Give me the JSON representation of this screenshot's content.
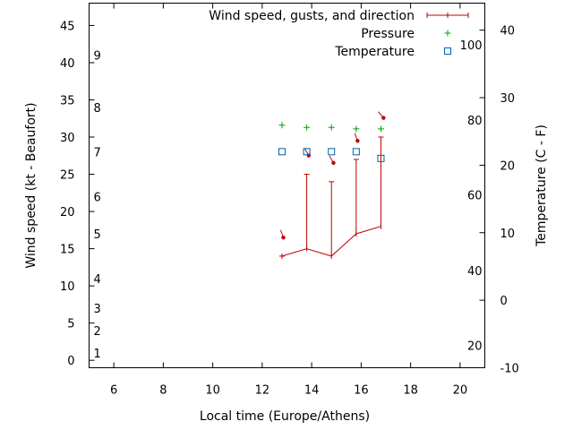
{
  "chart_data": {
    "type": "scatter",
    "xlabel": "Local time (Europe/Athens)",
    "ylabel": "Wind speed (kt - Beaufort)",
    "y2label": "Temperature (C - F)",
    "xlim": [
      5,
      21
    ],
    "ylim": [
      -1,
      48
    ],
    "y2lim": [
      -10,
      44
    ],
    "x_ticks": [
      6,
      8,
      10,
      12,
      14,
      16,
      18,
      20
    ],
    "y_ticks": [
      0,
      5,
      10,
      15,
      20,
      25,
      30,
      35,
      40,
      45
    ],
    "y2_ticks": [
      -10,
      0,
      10,
      20,
      30,
      40
    ],
    "beaufort_labels": [
      {
        "label": "1",
        "kt": 1
      },
      {
        "label": "2",
        "kt": 4
      },
      {
        "label": "3",
        "kt": 7
      },
      {
        "label": "4",
        "kt": 11
      },
      {
        "label": "5",
        "kt": 17
      },
      {
        "label": "6",
        "kt": 22
      },
      {
        "label": "7",
        "kt": 28
      },
      {
        "label": "8",
        "kt": 34
      },
      {
        "label": "9",
        "kt": 41
      }
    ],
    "fahrenheit_labels": [
      {
        "label": "20",
        "celsius": -6.7
      },
      {
        "label": "40",
        "celsius": 4.4
      },
      {
        "label": "60",
        "celsius": 15.6
      },
      {
        "label": "80",
        "celsius": 26.7
      },
      {
        "label": "100",
        "celsius": 37.8
      }
    ],
    "legend_position": "top-right",
    "series": [
      {
        "name": "Wind speed, gusts, and direction",
        "color": "#c00000",
        "x": [
          12.8,
          13.8,
          14.8,
          15.8,
          16.8
        ],
        "values": [
          14,
          15,
          14,
          17,
          18
        ],
        "gusts": [
          14,
          25,
          24,
          27,
          30
        ],
        "direction_deg": [
          340,
          330,
          330,
          340,
          320
        ]
      },
      {
        "name": "Pressure",
        "color": "#00a000",
        "x": [
          12.8,
          13.8,
          14.8,
          15.8,
          16.8
        ],
        "values": [
          31.6,
          31.3,
          31.3,
          31.1,
          31.1
        ]
      },
      {
        "name": "Temperature",
        "color": "#0060ad",
        "x": [
          12.8,
          13.8,
          14.8,
          15.8,
          16.8
        ],
        "values": [
          22,
          22,
          22,
          22,
          21
        ]
      }
    ]
  }
}
